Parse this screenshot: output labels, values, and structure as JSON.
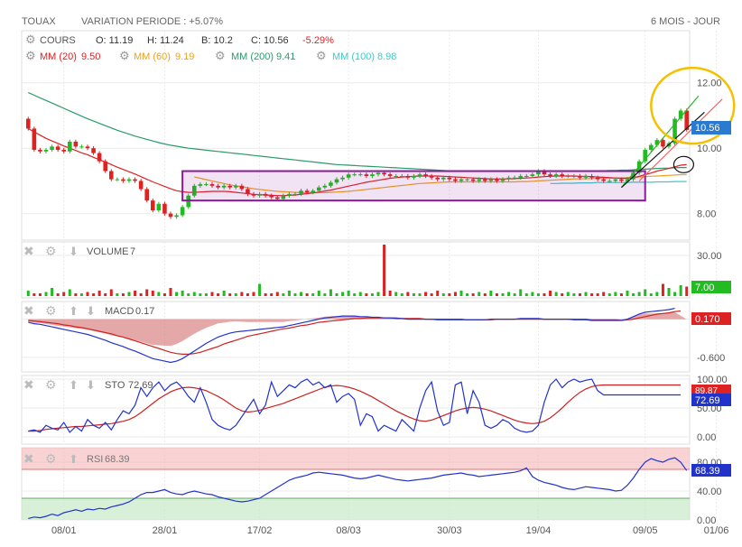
{
  "header": {
    "ticker": "TOUAX",
    "variation": "VARIATION PERIODE : +5.07%",
    "period": "6 MOIS - JOUR"
  },
  "price_panel": {
    "label": "COURS",
    "ohlc": {
      "o": "O: 11.19",
      "h": "H: 11.24",
      "b": "B: 10.2",
      "c": "C: 10.56",
      "chg": "-5.29%"
    },
    "mas": [
      {
        "label": "MM (20)",
        "value": "9.50",
        "color": "#e02020"
      },
      {
        "label": "MM (60)",
        "value": "9.19",
        "color": "#f0a020"
      },
      {
        "label": "MM (200)",
        "value": "9.41",
        "color": "#2a9a6a"
      },
      {
        "label": "MM (100)",
        "value": "8.98",
        "color": "#40c8c8"
      }
    ],
    "last_tag": "10.56"
  },
  "volume_panel": {
    "label": "VOLUME",
    "value": "7",
    "tag": "7.00"
  },
  "macd_panel": {
    "label": "MACD",
    "value": "0.17",
    "tag": "0.170"
  },
  "sto_panel": {
    "label": "STO",
    "value": "72.69",
    "tag_main": "72.69",
    "tag_signal": "89.87"
  },
  "rsi_panel": {
    "label": "RSI",
    "value": "68.39",
    "tag": "68.39"
  },
  "colors": {
    "up": "#22bb22",
    "down": "#dd2222",
    "macd_line": "#2233cc",
    "signal_line": "#cc2222",
    "box": "#8a1a9a",
    "circle": "#f5c000"
  },
  "chart_data": {
    "type": "candlestick",
    "x_tick_labels": [
      "08/01",
      "28/01",
      "17/02",
      "08/03",
      "30/03",
      "19/04",
      "09/05",
      "01/06"
    ],
    "price": {
      "y_ticks": [
        8.0,
        10.0,
        12.0
      ],
      "ylim": [
        7.3,
        12.6
      ],
      "close": [
        10.6,
        9.95,
        9.9,
        9.95,
        10.05,
        9.95,
        9.9,
        10.2,
        10.05,
        10.05,
        10.0,
        9.85,
        9.6,
        9.3,
        9.05,
        9.05,
        9.0,
        9.05,
        9.0,
        8.75,
        8.4,
        8.1,
        8.3,
        8.0,
        7.9,
        7.95,
        8.2,
        8.55,
        8.85,
        8.9,
        8.9,
        8.85,
        8.8,
        8.85,
        8.8,
        8.85,
        8.75,
        8.6,
        8.55,
        8.6,
        8.55,
        8.5,
        8.45,
        8.55,
        8.6,
        8.6,
        8.7,
        8.65,
        8.7,
        8.8,
        8.85,
        8.95,
        9.05,
        9.1,
        9.2,
        9.2,
        9.2,
        9.15,
        9.2,
        9.25,
        9.2,
        9.15,
        9.15,
        9.15,
        9.1,
        9.15,
        9.2,
        9.15,
        9.1,
        9.05,
        9.1,
        9.05,
        9.0,
        9.05,
        9.05,
        9.0,
        9.05,
        9.0,
        9.05,
        9.0,
        9.05,
        9.1,
        9.1,
        9.15,
        9.15,
        9.2,
        9.3,
        9.2,
        9.15,
        9.2,
        9.15,
        9.15,
        9.15,
        9.1,
        9.15,
        9.1,
        9.05,
        9.0,
        9.0,
        9.05,
        9.0,
        9.05,
        9.25,
        9.6,
        9.95,
        10.1,
        10.25,
        10.05,
        10.15,
        10.9,
        11.15,
        10.56
      ],
      "ma20": [
        10.6,
        10.5,
        10.4,
        10.3,
        10.22,
        10.15,
        10.07,
        10.0,
        9.93,
        9.86,
        9.8,
        9.72,
        9.65,
        9.58,
        9.5,
        9.42,
        9.35,
        9.28,
        9.21,
        9.13,
        9.05,
        8.97,
        8.9,
        8.83,
        8.76,
        8.7,
        8.67,
        8.65,
        8.65,
        8.66,
        8.67,
        8.68,
        8.68,
        8.68,
        8.67,
        8.65,
        8.63,
        8.61,
        8.59,
        8.58,
        8.57,
        8.56,
        8.55,
        8.55,
        8.56,
        8.57,
        8.59,
        8.61,
        8.63,
        8.66,
        8.69,
        8.72,
        8.76,
        8.8,
        8.84,
        8.88,
        8.92,
        8.96,
        8.99,
        9.02,
        9.05,
        9.08,
        9.1,
        9.12,
        9.13,
        9.14,
        9.15,
        9.15,
        9.15,
        9.15,
        9.14,
        9.13,
        9.12,
        9.11,
        9.1,
        9.09,
        9.08,
        9.07,
        9.06,
        9.06,
        9.06,
        9.06,
        9.07,
        9.08,
        9.09,
        9.1,
        9.12,
        9.13,
        9.14,
        9.15,
        9.15,
        9.15,
        9.15,
        9.14,
        9.14,
        9.13,
        9.12,
        9.11,
        9.1,
        9.09,
        9.08,
        9.08,
        9.1,
        9.14,
        9.19,
        9.24,
        9.3,
        9.34,
        9.38,
        9.43,
        9.48,
        9.5
      ],
      "ma60": [
        null,
        null,
        null,
        null,
        null,
        null,
        null,
        null,
        null,
        null,
        null,
        null,
        null,
        null,
        null,
        null,
        null,
        null,
        null,
        null,
        null,
        null,
        null,
        null,
        null,
        null,
        null,
        null,
        9.12,
        9.08,
        9.04,
        9.0,
        8.96,
        8.92,
        8.88,
        8.85,
        8.82,
        8.79,
        8.76,
        8.74,
        8.72,
        8.7,
        8.68,
        8.67,
        8.66,
        8.65,
        8.64,
        8.64,
        8.64,
        8.64,
        8.64,
        8.65,
        8.66,
        8.67,
        8.68,
        8.7,
        8.72,
        8.74,
        8.76,
        8.78,
        8.8,
        8.82,
        8.84,
        8.86,
        8.88,
        8.9,
        8.92,
        8.93,
        8.94,
        8.95,
        8.96,
        8.97,
        8.97,
        8.97,
        8.97,
        8.97,
        8.97,
        8.97,
        8.97,
        8.97,
        8.97,
        8.97,
        8.97,
        8.98,
        8.98,
        8.99,
        9.0,
        9.01,
        9.02,
        9.03,
        9.04,
        9.05,
        9.06,
        9.06,
        9.07,
        9.07,
        9.08,
        9.08,
        9.08,
        9.09,
        9.09,
        9.1,
        9.11,
        9.12,
        9.13,
        9.14,
        9.15,
        9.16,
        9.17,
        9.18,
        9.19,
        9.19
      ],
      "ma200": [
        11.7,
        11.62,
        11.54,
        11.46,
        11.38,
        11.3,
        11.22,
        11.14,
        11.06,
        10.98,
        10.9,
        10.83,
        10.76,
        10.69,
        10.62,
        10.55,
        10.49,
        10.43,
        10.37,
        10.32,
        10.27,
        10.22,
        10.17,
        10.13,
        10.09,
        10.06,
        10.03,
        10.0,
        9.98,
        9.96,
        9.94,
        9.92,
        9.9,
        9.88,
        9.86,
        9.84,
        9.82,
        9.8,
        9.78,
        9.76,
        9.74,
        9.72,
        9.7,
        9.68,
        9.66,
        9.64,
        9.62,
        9.6,
        9.58,
        9.56,
        9.54,
        9.52,
        9.5,
        9.49,
        9.48,
        9.47,
        9.46,
        9.45,
        9.44,
        9.43,
        9.42,
        9.41,
        9.4,
        9.39,
        9.38,
        9.37,
        9.36,
        9.35,
        9.34,
        9.33,
        9.32,
        9.31,
        9.31,
        9.3,
        9.3,
        9.3,
        9.3,
        9.3,
        9.29,
        9.29,
        9.29,
        9.29,
        9.29,
        9.29,
        9.29,
        9.29,
        9.29,
        9.29,
        9.29,
        9.29,
        9.29,
        9.3,
        9.3,
        9.3,
        9.3,
        9.3,
        9.31,
        9.31,
        9.32,
        9.32,
        9.33,
        9.33,
        9.34,
        9.35,
        9.36,
        9.37,
        9.38,
        9.39,
        9.39,
        9.4,
        9.41,
        9.41
      ],
      "ma100": [
        null,
        null,
        null,
        null,
        null,
        null,
        null,
        null,
        null,
        null,
        null,
        null,
        null,
        null,
        null,
        null,
        null,
        null,
        null,
        null,
        null,
        null,
        null,
        null,
        null,
        null,
        null,
        null,
        null,
        null,
        null,
        null,
        null,
        null,
        null,
        null,
        null,
        null,
        null,
        null,
        null,
        null,
        null,
        null,
        null,
        null,
        null,
        null,
        null,
        null,
        null,
        null,
        null,
        null,
        null,
        null,
        null,
        null,
        null,
        null,
        null,
        null,
        null,
        null,
        null,
        null,
        null,
        null,
        null,
        null,
        null,
        null,
        null,
        null,
        null,
        null,
        null,
        null,
        null,
        null,
        null,
        null,
        null,
        null,
        null,
        null,
        null,
        null,
        8.92,
        8.92,
        8.93,
        8.93,
        8.93,
        8.94,
        8.94,
        8.94,
        8.95,
        8.95,
        8.95,
        8.95,
        8.95,
        8.95,
        8.96,
        8.96,
        8.96,
        8.96,
        8.97,
        8.97,
        8.97,
        8.98,
        8.98,
        8.98
      ]
    },
    "volume": {
      "y_ticks": [
        30.0
      ],
      "ylim": [
        0,
        40
      ],
      "values": [
        4,
        2,
        2,
        3,
        6,
        2,
        3,
        5,
        2,
        2,
        3,
        2,
        4,
        2,
        5,
        2,
        2,
        3,
        4,
        2,
        5,
        4,
        3,
        2,
        6,
        3,
        4,
        2,
        3,
        2,
        2,
        3,
        2,
        4,
        2,
        2,
        3,
        2,
        3,
        9,
        2,
        2,
        3,
        2,
        4,
        2,
        3,
        2,
        2,
        4,
        2,
        5,
        2,
        3,
        4,
        2,
        3,
        2,
        2,
        3,
        38,
        4,
        3,
        2,
        3,
        2,
        2,
        3,
        2,
        4,
        2,
        2,
        3,
        4,
        2,
        2,
        3,
        2,
        4,
        2,
        2,
        3,
        2,
        5,
        2,
        3,
        2,
        2,
        4,
        3,
        2,
        3,
        2,
        2,
        3,
        2,
        2,
        3,
        2,
        3,
        2,
        4,
        2,
        3,
        5,
        2,
        3,
        9,
        6,
        3,
        8,
        7
      ]
    },
    "macd": {
      "y_ticks": [
        0.0,
        -0.6
      ],
      "macd": [
        -0.05,
        -0.07,
        -0.08,
        -0.1,
        -0.12,
        -0.14,
        -0.16,
        -0.18,
        -0.2,
        -0.22,
        -0.24,
        -0.27,
        -0.3,
        -0.33,
        -0.37,
        -0.4,
        -0.43,
        -0.47,
        -0.5,
        -0.54,
        -0.58,
        -0.62,
        -0.64,
        -0.66,
        -0.68,
        -0.66,
        -0.62,
        -0.56,
        -0.5,
        -0.44,
        -0.38,
        -0.33,
        -0.28,
        -0.25,
        -0.22,
        -0.2,
        -0.19,
        -0.18,
        -0.17,
        -0.16,
        -0.15,
        -0.14,
        -0.13,
        -0.12,
        -0.1,
        -0.08,
        -0.06,
        -0.04,
        -0.02,
        0.0,
        0.02,
        0.03,
        0.04,
        0.05,
        0.05,
        0.05,
        0.04,
        0.04,
        0.03,
        0.03,
        0.02,
        0.02,
        0.01,
        0.01,
        0.0,
        0.0,
        0.0,
        0.0,
        0.0,
        -0.01,
        -0.01,
        -0.01,
        -0.01,
        -0.01,
        -0.01,
        -0.01,
        -0.01,
        -0.01,
        0.0,
        0.0,
        0.0,
        0.0,
        0.0,
        0.01,
        0.01,
        0.01,
        0.01,
        0.0,
        0.0,
        0.0,
        0.0,
        0.0,
        -0.01,
        -0.01,
        -0.01,
        -0.02,
        -0.02,
        -0.02,
        -0.02,
        -0.02,
        -0.02,
        0.0,
        0.04,
        0.08,
        0.11,
        0.12,
        0.13,
        0.14,
        0.15,
        0.17
      ],
      "signal": [
        -0.02,
        -0.03,
        -0.04,
        -0.05,
        -0.06,
        -0.07,
        -0.09,
        -0.1,
        -0.12,
        -0.13,
        -0.15,
        -0.17,
        -0.19,
        -0.21,
        -0.23,
        -0.26,
        -0.28,
        -0.31,
        -0.34,
        -0.37,
        -0.4,
        -0.43,
        -0.46,
        -0.49,
        -0.52,
        -0.54,
        -0.55,
        -0.55,
        -0.54,
        -0.52,
        -0.49,
        -0.46,
        -0.43,
        -0.39,
        -0.36,
        -0.33,
        -0.3,
        -0.27,
        -0.25,
        -0.23,
        -0.21,
        -0.19,
        -0.17,
        -0.15,
        -0.14,
        -0.12,
        -0.1,
        -0.09,
        -0.07,
        -0.05,
        -0.04,
        -0.03,
        -0.02,
        -0.01,
        0.0,
        0.01,
        0.01,
        0.02,
        0.02,
        0.02,
        0.02,
        0.02,
        0.02,
        0.01,
        0.01,
        0.01,
        0.01,
        0.0,
        0.0,
        0.0,
        0.0,
        0.0,
        0.0,
        0.0,
        -0.01,
        -0.01,
        -0.01,
        -0.01,
        -0.01,
        0.0,
        0.0,
        0.0,
        0.0,
        0.0,
        0.0,
        0.0,
        0.0,
        0.0,
        0.0,
        0.0,
        0.0,
        0.0,
        0.0,
        0.0,
        0.0,
        -0.01,
        -0.01,
        -0.01,
        -0.01,
        -0.01,
        -0.02,
        -0.01,
        0.0,
        0.02,
        0.04,
        0.06,
        0.08,
        0.09,
        0.1,
        0.12,
        0.13
      ]
    },
    "sto": {
      "y_ticks": [
        100.0,
        50.0,
        0.0
      ],
      "k": [
        10,
        12,
        8,
        20,
        15,
        12,
        25,
        8,
        18,
        10,
        30,
        20,
        15,
        25,
        12,
        30,
        45,
        40,
        55,
        85,
        70,
        85,
        95,
        80,
        90,
        95,
        85,
        70,
        60,
        85,
        60,
        30,
        20,
        15,
        12,
        20,
        35,
        50,
        65,
        40,
        55,
        95,
        70,
        80,
        90,
        85,
        95,
        100,
        90,
        95,
        85,
        90,
        60,
        70,
        75,
        65,
        20,
        40,
        35,
        10,
        20,
        15,
        10,
        30,
        20,
        10,
        50,
        80,
        95,
        45,
        20,
        25,
        90,
        95,
        40,
        80,
        60,
        20,
        15,
        20,
        30,
        25,
        15,
        10,
        8,
        10,
        20,
        60,
        90,
        100,
        85,
        95,
        100,
        95,
        98,
        100,
        80,
        72.69,
        72.69,
        72.69,
        72.69,
        72.69,
        72.69,
        72.69,
        72.69,
        72.69,
        72.69,
        72.69,
        72.69,
        72.69,
        72.69
      ],
      "d": [
        10,
        10,
        11,
        13,
        14,
        15,
        16,
        17,
        18,
        18,
        19,
        20,
        21,
        22,
        23,
        25,
        27,
        30,
        35,
        42,
        50,
        58,
        66,
        72,
        78,
        82,
        85,
        86,
        85,
        83,
        80,
        75,
        70,
        64,
        57,
        50,
        45,
        43,
        44,
        46,
        49,
        52,
        55,
        58,
        62,
        66,
        70,
        74,
        78,
        82,
        86,
        88,
        89,
        88,
        86,
        83,
        79,
        74,
        69,
        63,
        57,
        51,
        45,
        40,
        35,
        31,
        28,
        27,
        29,
        33,
        37,
        41,
        45,
        48,
        50,
        51,
        50,
        48,
        45,
        41,
        37,
        33,
        29,
        26,
        24,
        23,
        24,
        27,
        33,
        41,
        50,
        60,
        69,
        77,
        83,
        87,
        89,
        89.87,
        89.87,
        89.87,
        89.87,
        89.87,
        89.87,
        89.87,
        89.87,
        89.87,
        89.87,
        89.87,
        89.87,
        89.87,
        89.87
      ]
    },
    "rsi": {
      "y_ticks": [
        80.0,
        40.0,
        0.0
      ],
      "values": [
        2,
        4,
        3,
        5,
        8,
        6,
        10,
        12,
        14,
        12,
        15,
        14,
        16,
        15,
        18,
        20,
        22,
        25,
        30,
        35,
        38,
        38,
        40,
        42,
        38,
        36,
        35,
        38,
        40,
        38,
        36,
        35,
        32,
        30,
        28,
        26,
        25,
        26,
        28,
        30,
        35,
        40,
        45,
        50,
        55,
        58,
        60,
        62,
        65,
        66,
        65,
        64,
        63,
        62,
        60,
        58,
        57,
        58,
        60,
        62,
        60,
        58,
        56,
        55,
        54,
        55,
        56,
        57,
        58,
        60,
        62,
        63,
        64,
        65,
        63,
        62,
        60,
        61,
        62,
        63,
        64,
        65,
        66,
        68,
        72,
        60,
        55,
        52,
        50,
        48,
        45,
        43,
        42,
        44,
        46,
        45,
        44,
        43,
        42,
        40,
        41,
        48,
        58,
        70,
        80,
        85,
        82,
        80,
        84,
        86,
        80,
        68.39
      ]
    },
    "annotations": [
      "consolidation-box",
      "breakout-trendlines",
      "highlight-circle"
    ]
  }
}
